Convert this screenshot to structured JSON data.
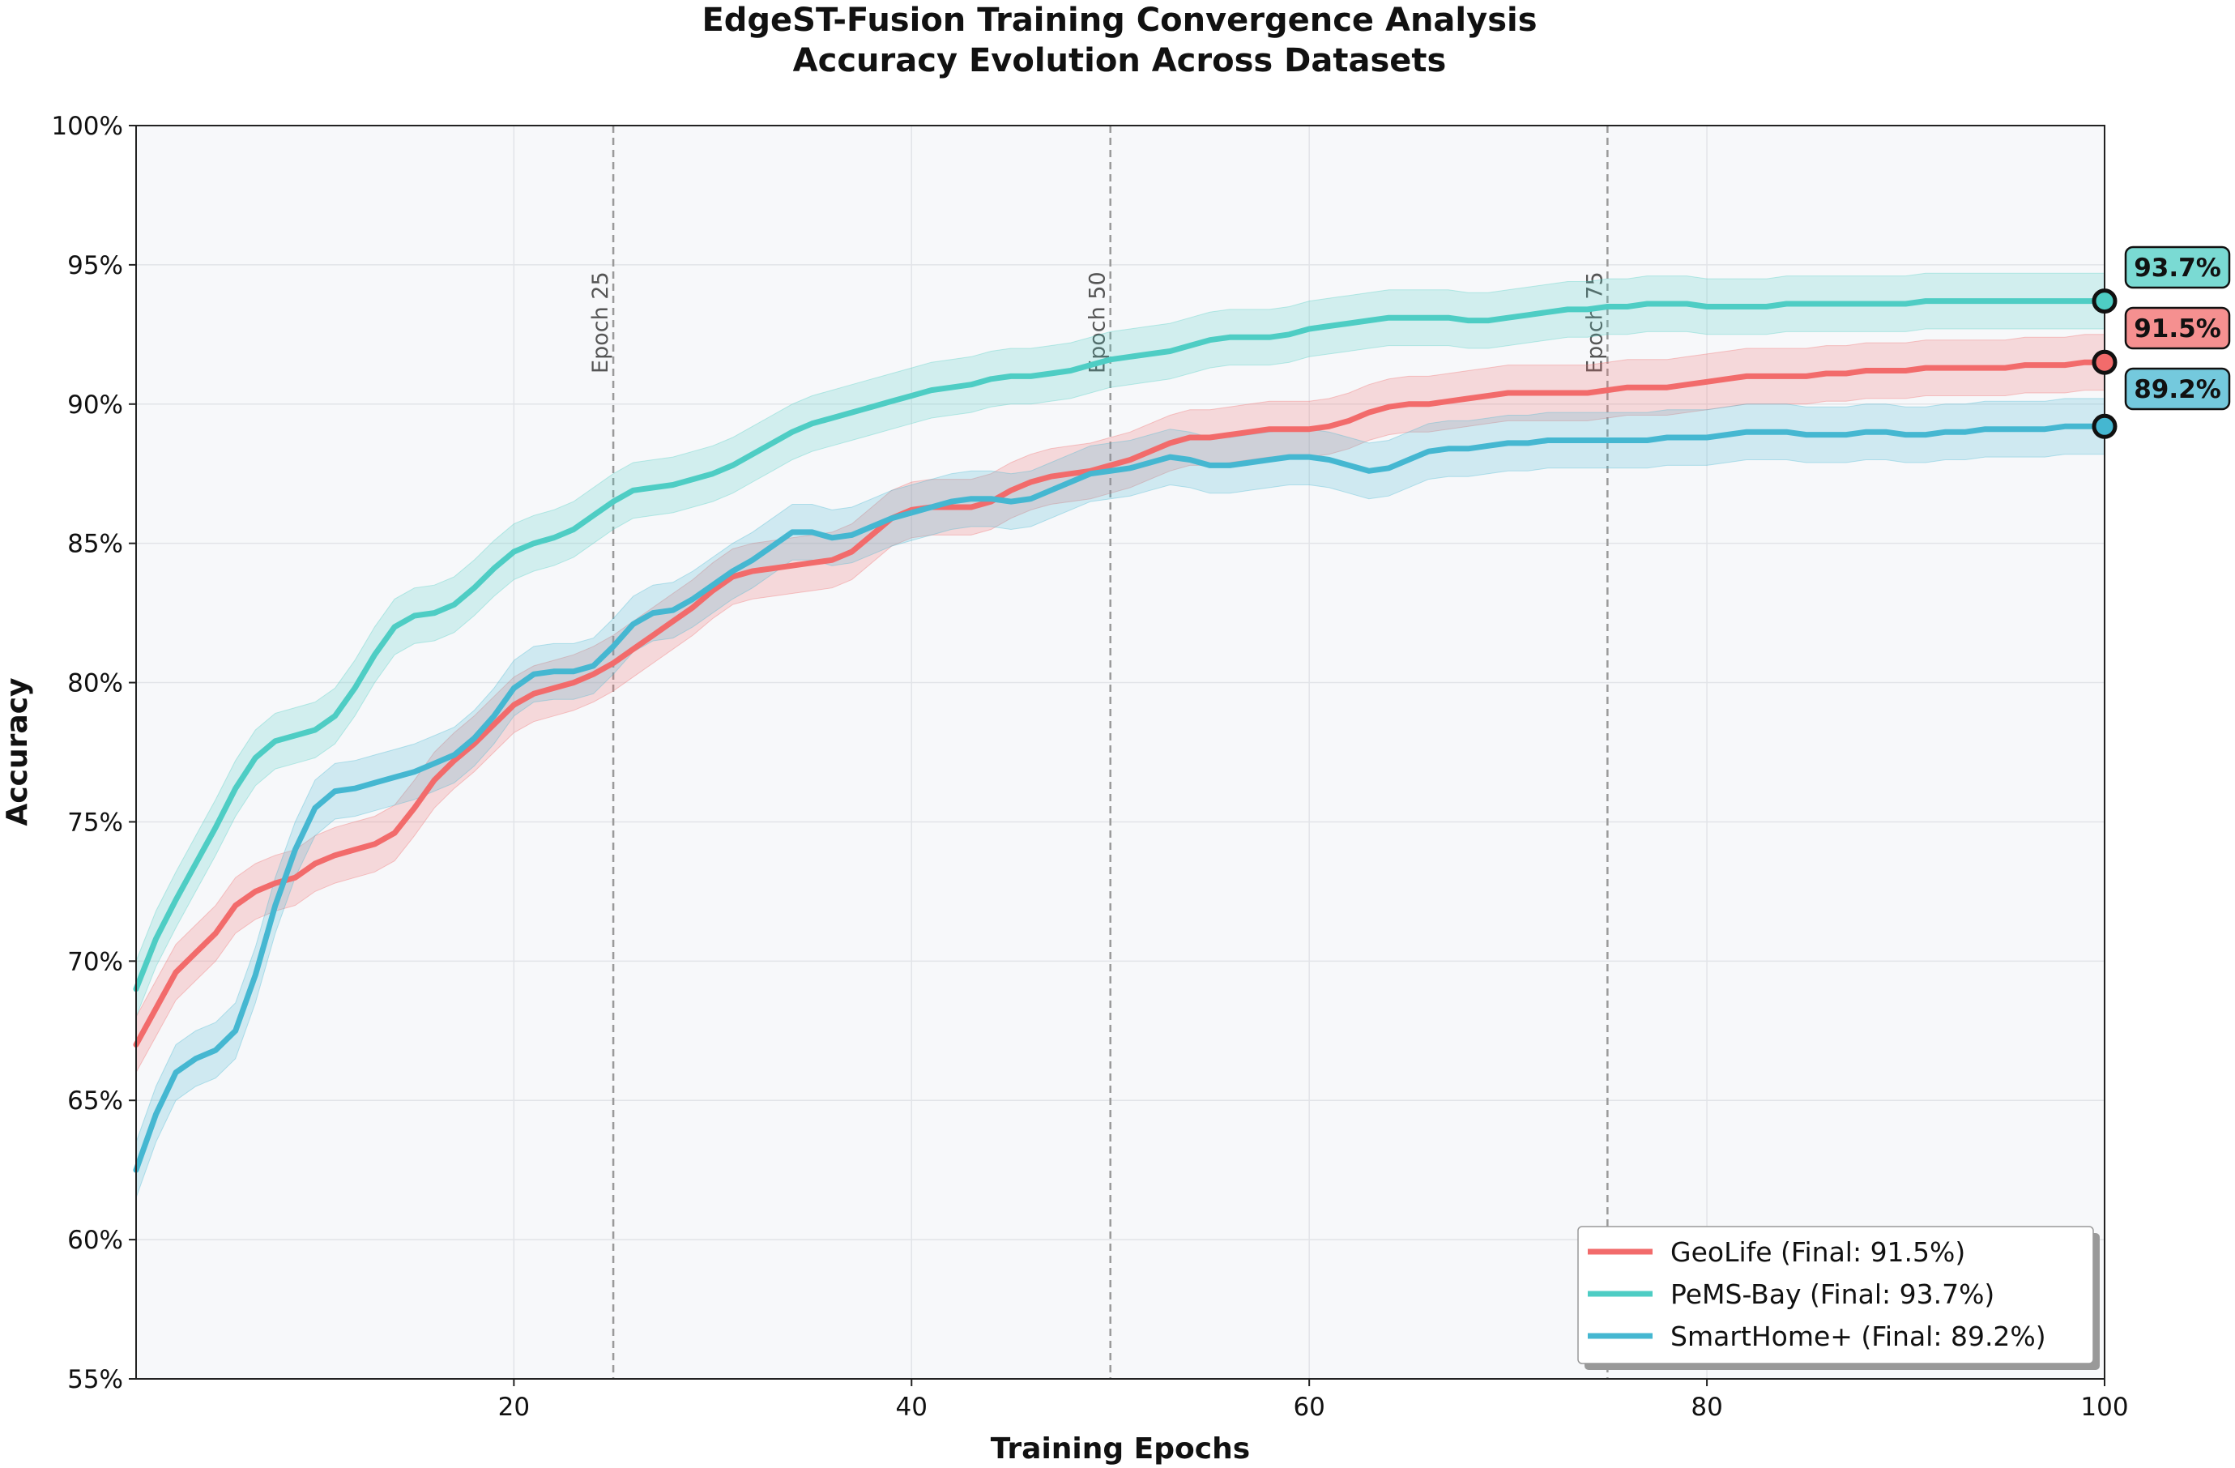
{
  "chart_data": {
    "type": "line",
    "title": "EdgeST-Fusion Training Convergence Analysis",
    "subtitle": "Accuracy Evolution Across Datasets",
    "xlabel": "Training Epochs",
    "ylabel": "Accuracy",
    "xlim": [
      1,
      100
    ],
    "ylim": [
      55,
      100
    ],
    "x_ticks": [
      20,
      40,
      60,
      80,
      100
    ],
    "y_ticks": [
      55,
      60,
      65,
      70,
      75,
      80,
      85,
      90,
      95,
      100
    ],
    "y_tick_labels": [
      "55%",
      "60%",
      "65%",
      "70%",
      "75%",
      "80%",
      "85%",
      "90%",
      "95%",
      "100%"
    ],
    "grid": true,
    "legend_position": "bottom-right",
    "reference_lines": [
      {
        "x": 25,
        "label": "Epoch 25"
      },
      {
        "x": 50,
        "label": "Epoch 50"
      },
      {
        "x": 75,
        "label": "Epoch 75"
      }
    ],
    "band_halfwidth": 1.0,
    "series": [
      {
        "name": "GeoLife",
        "legend": "GeoLife (Final: 91.5%)",
        "final_label": "91.5%",
        "color": "#F26B6B",
        "points": [
          [
            1,
            67.0
          ],
          [
            2,
            68.3
          ],
          [
            3,
            69.6
          ],
          [
            4,
            70.3
          ],
          [
            5,
            71.0
          ],
          [
            6,
            72.0
          ],
          [
            7,
            72.5
          ],
          [
            8,
            72.8
          ],
          [
            9,
            73.0
          ],
          [
            10,
            73.5
          ],
          [
            11,
            73.8
          ],
          [
            12,
            74.0
          ],
          [
            13,
            74.2
          ],
          [
            14,
            74.6
          ],
          [
            15,
            75.5
          ],
          [
            16,
            76.5
          ],
          [
            17,
            77.2
          ],
          [
            18,
            77.8
          ],
          [
            19,
            78.5
          ],
          [
            20,
            79.2
          ],
          [
            21,
            79.6
          ],
          [
            22,
            79.8
          ],
          [
            23,
            80.0
          ],
          [
            24,
            80.3
          ],
          [
            25,
            80.7
          ],
          [
            26,
            81.2
          ],
          [
            27,
            81.7
          ],
          [
            28,
            82.2
          ],
          [
            29,
            82.7
          ],
          [
            30,
            83.3
          ],
          [
            31,
            83.8
          ],
          [
            32,
            84.0
          ],
          [
            33,
            84.1
          ],
          [
            34,
            84.2
          ],
          [
            35,
            84.3
          ],
          [
            36,
            84.4
          ],
          [
            37,
            84.7
          ],
          [
            38,
            85.3
          ],
          [
            39,
            85.9
          ],
          [
            40,
            86.2
          ],
          [
            41,
            86.3
          ],
          [
            42,
            86.3
          ],
          [
            43,
            86.3
          ],
          [
            44,
            86.5
          ],
          [
            45,
            86.9
          ],
          [
            46,
            87.2
          ],
          [
            47,
            87.4
          ],
          [
            48,
            87.5
          ],
          [
            49,
            87.6
          ],
          [
            50,
            87.8
          ],
          [
            51,
            88.0
          ],
          [
            52,
            88.3
          ],
          [
            53,
            88.6
          ],
          [
            54,
            88.8
          ],
          [
            55,
            88.8
          ],
          [
            56,
            88.9
          ],
          [
            57,
            89.0
          ],
          [
            58,
            89.1
          ],
          [
            59,
            89.1
          ],
          [
            60,
            89.1
          ],
          [
            61,
            89.2
          ],
          [
            62,
            89.4
          ],
          [
            63,
            89.7
          ],
          [
            64,
            89.9
          ],
          [
            65,
            90.0
          ],
          [
            66,
            90.0
          ],
          [
            67,
            90.1
          ],
          [
            68,
            90.2
          ],
          [
            69,
            90.3
          ],
          [
            70,
            90.4
          ],
          [
            71,
            90.4
          ],
          [
            72,
            90.4
          ],
          [
            73,
            90.4
          ],
          [
            74,
            90.4
          ],
          [
            75,
            90.5
          ],
          [
            76,
            90.6
          ],
          [
            77,
            90.6
          ],
          [
            78,
            90.6
          ],
          [
            79,
            90.7
          ],
          [
            80,
            90.8
          ],
          [
            81,
            90.9
          ],
          [
            82,
            91.0
          ],
          [
            83,
            91.0
          ],
          [
            84,
            91.0
          ],
          [
            85,
            91.0
          ],
          [
            86,
            91.1
          ],
          [
            87,
            91.1
          ],
          [
            88,
            91.2
          ],
          [
            89,
            91.2
          ],
          [
            90,
            91.2
          ],
          [
            91,
            91.3
          ],
          [
            92,
            91.3
          ],
          [
            93,
            91.3
          ],
          [
            94,
            91.3
          ],
          [
            95,
            91.3
          ],
          [
            96,
            91.4
          ],
          [
            97,
            91.4
          ],
          [
            98,
            91.4
          ],
          [
            99,
            91.5
          ],
          [
            100,
            91.5
          ]
        ]
      },
      {
        "name": "PeMS-Bay",
        "legend": "PeMS-Bay (Final: 93.7%)",
        "final_label": "93.7%",
        "color": "#4ECDC4",
        "points": [
          [
            1,
            69.0
          ],
          [
            2,
            70.8
          ],
          [
            3,
            72.2
          ],
          [
            4,
            73.5
          ],
          [
            5,
            74.8
          ],
          [
            6,
            76.2
          ],
          [
            7,
            77.3
          ],
          [
            8,
            77.9
          ],
          [
            9,
            78.1
          ],
          [
            10,
            78.3
          ],
          [
            11,
            78.8
          ],
          [
            12,
            79.8
          ],
          [
            13,
            81.0
          ],
          [
            14,
            82.0
          ],
          [
            15,
            82.4
          ],
          [
            16,
            82.5
          ],
          [
            17,
            82.8
          ],
          [
            18,
            83.4
          ],
          [
            19,
            84.1
          ],
          [
            20,
            84.7
          ],
          [
            21,
            85.0
          ],
          [
            22,
            85.2
          ],
          [
            23,
            85.5
          ],
          [
            24,
            86.0
          ],
          [
            25,
            86.5
          ],
          [
            26,
            86.9
          ],
          [
            27,
            87.0
          ],
          [
            28,
            87.1
          ],
          [
            29,
            87.3
          ],
          [
            30,
            87.5
          ],
          [
            31,
            87.8
          ],
          [
            32,
            88.2
          ],
          [
            33,
            88.6
          ],
          [
            34,
            89.0
          ],
          [
            35,
            89.3
          ],
          [
            36,
            89.5
          ],
          [
            37,
            89.7
          ],
          [
            38,
            89.9
          ],
          [
            39,
            90.1
          ],
          [
            40,
            90.3
          ],
          [
            41,
            90.5
          ],
          [
            42,
            90.6
          ],
          [
            43,
            90.7
          ],
          [
            44,
            90.9
          ],
          [
            45,
            91.0
          ],
          [
            46,
            91.0
          ],
          [
            47,
            91.1
          ],
          [
            48,
            91.2
          ],
          [
            49,
            91.4
          ],
          [
            50,
            91.6
          ],
          [
            51,
            91.7
          ],
          [
            52,
            91.8
          ],
          [
            53,
            91.9
          ],
          [
            54,
            92.1
          ],
          [
            55,
            92.3
          ],
          [
            56,
            92.4
          ],
          [
            57,
            92.4
          ],
          [
            58,
            92.4
          ],
          [
            59,
            92.5
          ],
          [
            60,
            92.7
          ],
          [
            61,
            92.8
          ],
          [
            62,
            92.9
          ],
          [
            63,
            93.0
          ],
          [
            64,
            93.1
          ],
          [
            65,
            93.1
          ],
          [
            66,
            93.1
          ],
          [
            67,
            93.1
          ],
          [
            68,
            93.0
          ],
          [
            69,
            93.0
          ],
          [
            70,
            93.1
          ],
          [
            71,
            93.2
          ],
          [
            72,
            93.3
          ],
          [
            73,
            93.4
          ],
          [
            74,
            93.4
          ],
          [
            75,
            93.5
          ],
          [
            76,
            93.5
          ],
          [
            77,
            93.6
          ],
          [
            78,
            93.6
          ],
          [
            79,
            93.6
          ],
          [
            80,
            93.5
          ],
          [
            81,
            93.5
          ],
          [
            82,
            93.5
          ],
          [
            83,
            93.5
          ],
          [
            84,
            93.6
          ],
          [
            85,
            93.6
          ],
          [
            86,
            93.6
          ],
          [
            87,
            93.6
          ],
          [
            88,
            93.6
          ],
          [
            89,
            93.6
          ],
          [
            90,
            93.6
          ],
          [
            91,
            93.7
          ],
          [
            92,
            93.7
          ],
          [
            93,
            93.7
          ],
          [
            94,
            93.7
          ],
          [
            95,
            93.7
          ],
          [
            96,
            93.7
          ],
          [
            97,
            93.7
          ],
          [
            98,
            93.7
          ],
          [
            99,
            93.7
          ],
          [
            100,
            93.7
          ]
        ]
      },
      {
        "name": "SmartHome+",
        "legend": "SmartHome+ (Final: 89.2%)",
        "final_label": "89.2%",
        "color": "#45B7D1",
        "points": [
          [
            1,
            62.5
          ],
          [
            2,
            64.5
          ],
          [
            3,
            66.0
          ],
          [
            4,
            66.5
          ],
          [
            5,
            66.8
          ],
          [
            6,
            67.5
          ],
          [
            7,
            69.5
          ],
          [
            8,
            72.0
          ],
          [
            9,
            74.0
          ],
          [
            10,
            75.5
          ],
          [
            11,
            76.1
          ],
          [
            12,
            76.2
          ],
          [
            13,
            76.4
          ],
          [
            14,
            76.6
          ],
          [
            15,
            76.8
          ],
          [
            16,
            77.1
          ],
          [
            17,
            77.4
          ],
          [
            18,
            78.0
          ],
          [
            19,
            78.8
          ],
          [
            20,
            79.8
          ],
          [
            21,
            80.3
          ],
          [
            22,
            80.4
          ],
          [
            23,
            80.4
          ],
          [
            24,
            80.6
          ],
          [
            25,
            81.3
          ],
          [
            26,
            82.1
          ],
          [
            27,
            82.5
          ],
          [
            28,
            82.6
          ],
          [
            29,
            83.0
          ],
          [
            30,
            83.5
          ],
          [
            31,
            84.0
          ],
          [
            32,
            84.4
          ],
          [
            33,
            84.9
          ],
          [
            34,
            85.4
          ],
          [
            35,
            85.4
          ],
          [
            36,
            85.2
          ],
          [
            37,
            85.3
          ],
          [
            38,
            85.6
          ],
          [
            39,
            85.9
          ],
          [
            40,
            86.1
          ],
          [
            41,
            86.3
          ],
          [
            42,
            86.5
          ],
          [
            43,
            86.6
          ],
          [
            44,
            86.6
          ],
          [
            45,
            86.5
          ],
          [
            46,
            86.6
          ],
          [
            47,
            86.9
          ],
          [
            48,
            87.2
          ],
          [
            49,
            87.5
          ],
          [
            50,
            87.6
          ],
          [
            51,
            87.7
          ],
          [
            52,
            87.9
          ],
          [
            53,
            88.1
          ],
          [
            54,
            88.0
          ],
          [
            55,
            87.8
          ],
          [
            56,
            87.8
          ],
          [
            57,
            87.9
          ],
          [
            58,
            88.0
          ],
          [
            59,
            88.1
          ],
          [
            60,
            88.1
          ],
          [
            61,
            88.0
          ],
          [
            62,
            87.8
          ],
          [
            63,
            87.6
          ],
          [
            64,
            87.7
          ],
          [
            65,
            88.0
          ],
          [
            66,
            88.3
          ],
          [
            67,
            88.4
          ],
          [
            68,
            88.4
          ],
          [
            69,
            88.5
          ],
          [
            70,
            88.6
          ],
          [
            71,
            88.6
          ],
          [
            72,
            88.7
          ],
          [
            73,
            88.7
          ],
          [
            74,
            88.7
          ],
          [
            75,
            88.7
          ],
          [
            76,
            88.7
          ],
          [
            77,
            88.7
          ],
          [
            78,
            88.8
          ],
          [
            79,
            88.8
          ],
          [
            80,
            88.8
          ],
          [
            81,
            88.9
          ],
          [
            82,
            89.0
          ],
          [
            83,
            89.0
          ],
          [
            84,
            89.0
          ],
          [
            85,
            88.9
          ],
          [
            86,
            88.9
          ],
          [
            87,
            88.9
          ],
          [
            88,
            89.0
          ],
          [
            89,
            89.0
          ],
          [
            90,
            88.9
          ],
          [
            91,
            88.9
          ],
          [
            92,
            89.0
          ],
          [
            93,
            89.0
          ],
          [
            94,
            89.1
          ],
          [
            95,
            89.1
          ],
          [
            96,
            89.1
          ],
          [
            97,
            89.1
          ],
          [
            98,
            89.2
          ],
          [
            99,
            89.2
          ],
          [
            100,
            89.2
          ]
        ]
      }
    ]
  }
}
